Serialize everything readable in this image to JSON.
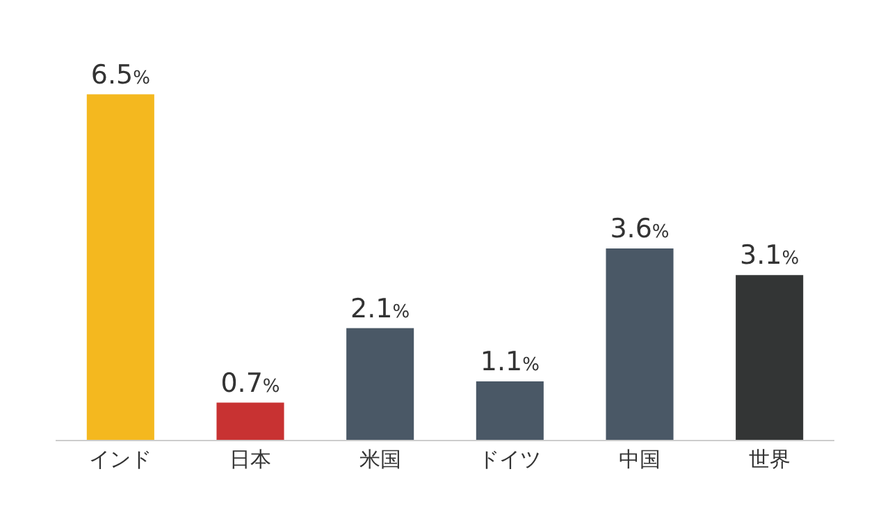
{
  "chart_data": {
    "type": "bar",
    "categories": [
      "インド",
      "日本",
      "米国",
      "ドイツ",
      "中国",
      "世界"
    ],
    "values": [
      6.5,
      0.7,
      2.1,
      1.1,
      3.6,
      3.1
    ],
    "value_labels": [
      "6.5%",
      "0.7%",
      "2.1%",
      "1.1%",
      "3.6%",
      "3.1%"
    ],
    "colors": [
      "#f4b81f",
      "#c83232",
      "#4a5866",
      "#4a5866",
      "#4a5866",
      "#333535"
    ]
  }
}
